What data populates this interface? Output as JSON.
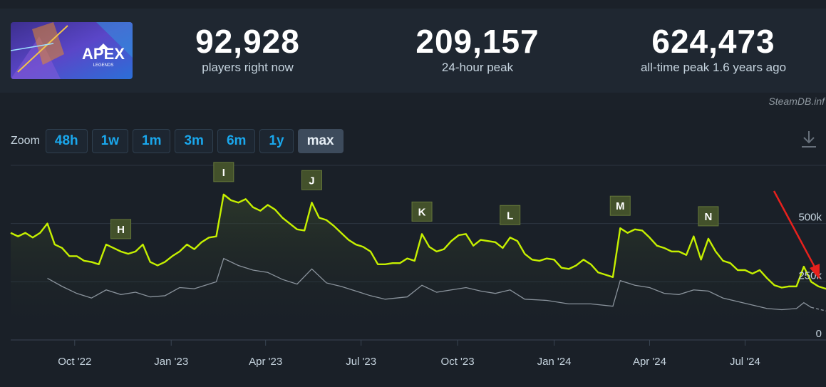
{
  "header": {
    "logo": {
      "text": "APEX",
      "subtext": "LEGENDS"
    },
    "stats": [
      {
        "value": "92,928",
        "label": "players right now"
      },
      {
        "value": "209,157",
        "label": "24-hour peak"
      },
      {
        "value": "624,473",
        "label": "all-time peak 1.6 years ago"
      }
    ],
    "credit": "SteamDB.inf"
  },
  "zoom": {
    "label": "Zoom",
    "buttons": [
      "48h",
      "1w",
      "1m",
      "3m",
      "6m",
      "1y",
      "max"
    ],
    "active": "max"
  },
  "icons": {
    "download": "download-icon",
    "arrow": "red-arrow-annotation"
  },
  "colors": {
    "players": "#c6f000",
    "average": "#8a939c",
    "arrow": "#e8211d",
    "flag": "#43512b"
  },
  "chart_data": {
    "type": "line",
    "x_tick_labels": [
      "Oct '22",
      "Jan '23",
      "Apr '23",
      "Jul '23",
      "Oct '23",
      "Jan '24",
      "Apr '24",
      "Jul '24"
    ],
    "x_start": "2022-08-01",
    "x_end": "2024-09-08",
    "y_tick_labels": [
      "0",
      "250k",
      "500k"
    ],
    "ylim": [
      0,
      750000
    ],
    "grid": true,
    "series": [
      {
        "name": "Players",
        "points": [
          [
            "2022-08-01",
            460000
          ],
          [
            "2022-08-08",
            445000
          ],
          [
            "2022-08-15",
            460000
          ],
          [
            "2022-08-22",
            440000
          ],
          [
            "2022-08-29",
            460000
          ],
          [
            "2022-09-05",
            500000
          ],
          [
            "2022-09-12",
            410000
          ],
          [
            "2022-09-19",
            395000
          ],
          [
            "2022-09-26",
            360000
          ],
          [
            "2022-10-03",
            360000
          ],
          [
            "2022-10-10",
            340000
          ],
          [
            "2022-10-17",
            335000
          ],
          [
            "2022-10-24",
            325000
          ],
          [
            "2022-10-31",
            410000
          ],
          [
            "2022-11-07",
            395000
          ],
          [
            "2022-11-14",
            380000
          ],
          [
            "2022-11-21",
            370000
          ],
          [
            "2022-11-28",
            380000
          ],
          [
            "2022-12-05",
            410000
          ],
          [
            "2022-12-12",
            335000
          ],
          [
            "2022-12-19",
            320000
          ],
          [
            "2022-12-26",
            335000
          ],
          [
            "2023-01-02",
            360000
          ],
          [
            "2023-01-09",
            380000
          ],
          [
            "2023-01-16",
            410000
          ],
          [
            "2023-01-23",
            390000
          ],
          [
            "2023-01-30",
            420000
          ],
          [
            "2023-02-06",
            440000
          ],
          [
            "2023-02-13",
            445000
          ],
          [
            "2023-02-20",
            625000
          ],
          [
            "2023-02-27",
            600000
          ],
          [
            "2023-03-06",
            590000
          ],
          [
            "2023-03-13",
            605000
          ],
          [
            "2023-03-20",
            570000
          ],
          [
            "2023-03-27",
            555000
          ],
          [
            "2023-04-03",
            580000
          ],
          [
            "2023-04-10",
            560000
          ],
          [
            "2023-04-17",
            525000
          ],
          [
            "2023-04-24",
            500000
          ],
          [
            "2023-05-01",
            475000
          ],
          [
            "2023-05-08",
            470000
          ],
          [
            "2023-05-15",
            590000
          ],
          [
            "2023-05-22",
            525000
          ],
          [
            "2023-05-29",
            515000
          ],
          [
            "2023-06-05",
            490000
          ],
          [
            "2023-06-12",
            460000
          ],
          [
            "2023-06-19",
            430000
          ],
          [
            "2023-06-26",
            410000
          ],
          [
            "2023-07-03",
            400000
          ],
          [
            "2023-07-10",
            380000
          ],
          [
            "2023-07-17",
            325000
          ],
          [
            "2023-07-24",
            325000
          ],
          [
            "2023-07-31",
            330000
          ],
          [
            "2023-08-07",
            330000
          ],
          [
            "2023-08-14",
            350000
          ],
          [
            "2023-08-21",
            340000
          ],
          [
            "2023-08-28",
            455000
          ],
          [
            "2023-09-04",
            400000
          ],
          [
            "2023-09-11",
            380000
          ],
          [
            "2023-09-18",
            390000
          ],
          [
            "2023-09-25",
            425000
          ],
          [
            "2023-10-02",
            450000
          ],
          [
            "2023-10-09",
            455000
          ],
          [
            "2023-10-16",
            405000
          ],
          [
            "2023-10-23",
            430000
          ],
          [
            "2023-10-30",
            425000
          ],
          [
            "2023-11-06",
            420000
          ],
          [
            "2023-11-13",
            395000
          ],
          [
            "2023-11-20",
            440000
          ],
          [
            "2023-11-27",
            425000
          ],
          [
            "2023-12-04",
            370000
          ],
          [
            "2023-12-11",
            345000
          ],
          [
            "2023-12-18",
            340000
          ],
          [
            "2023-12-25",
            350000
          ],
          [
            "2024-01-01",
            345000
          ],
          [
            "2024-01-08",
            310000
          ],
          [
            "2024-01-15",
            305000
          ],
          [
            "2024-01-22",
            320000
          ],
          [
            "2024-01-29",
            345000
          ],
          [
            "2024-02-05",
            325000
          ],
          [
            "2024-02-12",
            290000
          ],
          [
            "2024-02-19",
            280000
          ],
          [
            "2024-02-26",
            270000
          ],
          [
            "2024-03-04",
            480000
          ],
          [
            "2024-03-11",
            460000
          ],
          [
            "2024-03-18",
            475000
          ],
          [
            "2024-03-25",
            470000
          ],
          [
            "2024-04-01",
            440000
          ],
          [
            "2024-04-08",
            405000
          ],
          [
            "2024-04-15",
            395000
          ],
          [
            "2024-04-22",
            380000
          ],
          [
            "2024-04-29",
            380000
          ],
          [
            "2024-05-06",
            365000
          ],
          [
            "2024-05-13",
            445000
          ],
          [
            "2024-05-20",
            345000
          ],
          [
            "2024-05-27",
            435000
          ],
          [
            "2024-06-03",
            380000
          ],
          [
            "2024-06-10",
            340000
          ],
          [
            "2024-06-17",
            330000
          ],
          [
            "2024-06-24",
            300000
          ],
          [
            "2024-07-01",
            300000
          ],
          [
            "2024-07-08",
            285000
          ],
          [
            "2024-07-15",
            300000
          ],
          [
            "2024-07-22",
            265000
          ],
          [
            "2024-07-29",
            235000
          ],
          [
            "2024-08-05",
            225000
          ],
          [
            "2024-08-12",
            230000
          ],
          [
            "2024-08-19",
            230000
          ],
          [
            "2024-08-26",
            315000
          ],
          [
            "2024-09-02",
            250000
          ],
          [
            "2024-09-09",
            230000
          ],
          [
            "2024-09-16",
            220000
          ],
          [
            "2024-09-23",
            240000
          ],
          [
            "2024-09-30",
            220000
          ]
        ]
      },
      {
        "name": "Average",
        "points": [
          [
            "2022-09-05",
            265000
          ],
          [
            "2022-09-19",
            230000
          ],
          [
            "2022-10-03",
            200000
          ],
          [
            "2022-10-17",
            180000
          ],
          [
            "2022-10-31",
            215000
          ],
          [
            "2022-11-14",
            195000
          ],
          [
            "2022-11-28",
            205000
          ],
          [
            "2022-12-12",
            185000
          ],
          [
            "2022-12-26",
            190000
          ],
          [
            "2023-01-09",
            225000
          ],
          [
            "2023-01-23",
            220000
          ],
          [
            "2023-02-06",
            240000
          ],
          [
            "2023-02-13",
            250000
          ],
          [
            "2023-02-20",
            350000
          ],
          [
            "2023-03-06",
            320000
          ],
          [
            "2023-03-20",
            300000
          ],
          [
            "2023-04-03",
            290000
          ],
          [
            "2023-04-17",
            260000
          ],
          [
            "2023-05-01",
            240000
          ],
          [
            "2023-05-15",
            305000
          ],
          [
            "2023-05-29",
            245000
          ],
          [
            "2023-06-12",
            230000
          ],
          [
            "2023-06-26",
            210000
          ],
          [
            "2023-07-10",
            190000
          ],
          [
            "2023-07-24",
            175000
          ],
          [
            "2023-08-14",
            185000
          ],
          [
            "2023-08-28",
            235000
          ],
          [
            "2023-09-11",
            205000
          ],
          [
            "2023-09-25",
            215000
          ],
          [
            "2023-10-09",
            225000
          ],
          [
            "2023-10-23",
            210000
          ],
          [
            "2023-11-06",
            200000
          ],
          [
            "2023-11-20",
            215000
          ],
          [
            "2023-12-04",
            175000
          ],
          [
            "2023-12-25",
            170000
          ],
          [
            "2024-01-15",
            155000
          ],
          [
            "2024-02-05",
            155000
          ],
          [
            "2024-02-26",
            145000
          ],
          [
            "2024-03-04",
            255000
          ],
          [
            "2024-03-18",
            235000
          ],
          [
            "2024-04-01",
            225000
          ],
          [
            "2024-04-15",
            200000
          ],
          [
            "2024-04-29",
            195000
          ],
          [
            "2024-05-13",
            215000
          ],
          [
            "2024-05-27",
            210000
          ],
          [
            "2024-06-10",
            180000
          ],
          [
            "2024-06-24",
            165000
          ],
          [
            "2024-07-08",
            150000
          ],
          [
            "2024-07-22",
            135000
          ],
          [
            "2024-08-05",
            130000
          ],
          [
            "2024-08-19",
            135000
          ],
          [
            "2024-08-26",
            160000
          ],
          [
            "2024-09-02",
            140000
          ],
          [
            "2024-09-16",
            125000
          ],
          [
            "2024-09-30",
            130000
          ]
        ]
      }
    ],
    "annotations": [
      {
        "label": "H",
        "date": "2022-11-14"
      },
      {
        "label": "I",
        "date": "2023-02-20"
      },
      {
        "label": "J",
        "date": "2023-05-15"
      },
      {
        "label": "K",
        "date": "2023-08-28"
      },
      {
        "label": "L",
        "date": "2023-11-20"
      },
      {
        "label": "M",
        "date": "2024-03-04"
      },
      {
        "label": "N",
        "date": "2024-05-27"
      }
    ]
  }
}
